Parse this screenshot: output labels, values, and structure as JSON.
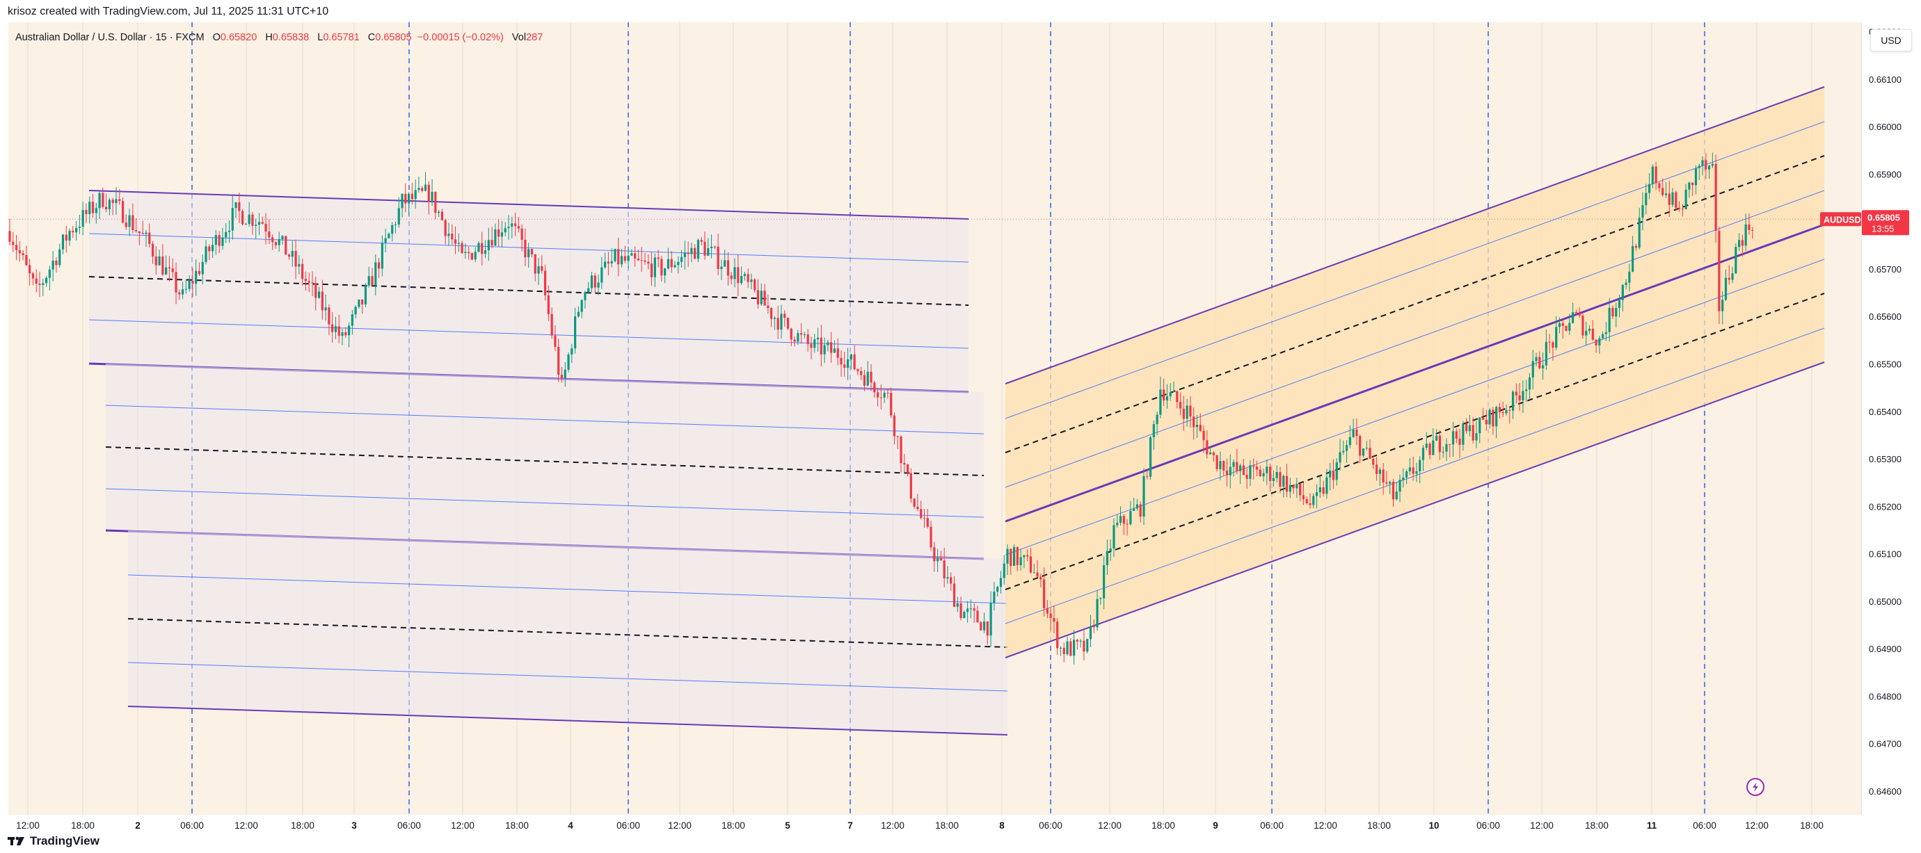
{
  "header": {
    "credit": "krisoz created with TradingView.com, Jul 11, 2025 11:31 UTC+10"
  },
  "legend": {
    "symbol": "Australian Dollar / U.S. Dollar · 15 · FXCM",
    "o_label": "O",
    "o_value": "0.65820",
    "h_label": "H",
    "h_value": "0.65838",
    "l_label": "L",
    "l_value": "0.65781",
    "c_label": "C",
    "c_value": "0.65805",
    "change": "−0.00015 (−0.02%)",
    "vol_label": "Vol",
    "vol_value": "287"
  },
  "price_scale": {
    "currency": "USD",
    "ticks": [
      "0.66200",
      "0.66100",
      "0.66000",
      "0.65900",
      "0.65700",
      "0.65600",
      "0.65500",
      "0.65400",
      "0.65300",
      "0.65200",
      "0.65100",
      "0.65000",
      "0.64900",
      "0.64800",
      "0.64700",
      "0.64600"
    ],
    "symbol_badge": "AUDUSD",
    "last_price": "0.65805",
    "countdown": "13:55"
  },
  "time_scale": {
    "labels": [
      "12:00",
      "18:00",
      "2",
      "06:00",
      "12:00",
      "18:00",
      "3",
      "06:00",
      "12:00",
      "18:00",
      "4",
      "06:00",
      "12:00",
      "18:00",
      "5",
      "7",
      "12:00",
      "18:00",
      "8",
      "06:00",
      "12:00",
      "18:00",
      "9",
      "06:00",
      "12:00",
      "18:00",
      "10",
      "06:00",
      "12:00",
      "18:00",
      "11",
      "06:00",
      "12:00",
      "18:00"
    ]
  },
  "footer": {
    "brand": "TradingView"
  },
  "colors": {
    "background": "#fbf1e4",
    "up_candle": "#089981",
    "down_candle": "#f23645",
    "channel_line": "#673ab7",
    "channel_inner": "#2962ff",
    "right_channel_fill": "#ffdfb0",
    "left_channel_fill": "#ede6ec"
  },
  "chart_data": {
    "type": "candlestick",
    "symbol": "AUDUSD",
    "interval": "15",
    "ylim": [
      0.6455,
      0.6622
    ],
    "x_range_bars": 555,
    "last_price": 0.65805,
    "anchor_path": [
      [
        0,
        0.6578
      ],
      [
        8,
        0.6565
      ],
      [
        18,
        0.6578
      ],
      [
        28,
        0.6585
      ],
      [
        34,
        0.6582
      ],
      [
        42,
        0.6575
      ],
      [
        52,
        0.6564
      ],
      [
        60,
        0.6574
      ],
      [
        68,
        0.6582
      ],
      [
        76,
        0.658
      ],
      [
        84,
        0.6573
      ],
      [
        94,
        0.6562
      ],
      [
        100,
        0.6555
      ],
      [
        106,
        0.6563
      ],
      [
        118,
        0.6584
      ],
      [
        126,
        0.6586
      ],
      [
        136,
        0.6572
      ],
      [
        150,
        0.658
      ],
      [
        160,
        0.6568
      ],
      [
        166,
        0.6545
      ],
      [
        172,
        0.6565
      ],
      [
        182,
        0.6572
      ],
      [
        196,
        0.657
      ],
      [
        208,
        0.6575
      ],
      [
        220,
        0.6568
      ],
      [
        230,
        0.656
      ],
      [
        240,
        0.6554
      ],
      [
        250,
        0.6552
      ],
      [
        258,
        0.6547
      ],
      [
        264,
        0.6543
      ],
      [
        270,
        0.6525
      ],
      [
        278,
        0.651
      ],
      [
        286,
        0.6498
      ],
      [
        294,
        0.6495
      ],
      [
        300,
        0.651
      ],
      [
        308,
        0.6507
      ],
      [
        316,
        0.649
      ],
      [
        324,
        0.649
      ],
      [
        332,
        0.6515
      ],
      [
        340,
        0.652
      ],
      [
        346,
        0.6545
      ],
      [
        354,
        0.654
      ],
      [
        362,
        0.653
      ],
      [
        370,
        0.6527
      ],
      [
        380,
        0.6527
      ],
      [
        392,
        0.652
      ],
      [
        404,
        0.6535
      ],
      [
        416,
        0.6522
      ],
      [
        428,
        0.6533
      ],
      [
        440,
        0.6536
      ],
      [
        452,
        0.6542
      ],
      [
        462,
        0.6553
      ],
      [
        470,
        0.656
      ],
      [
        478,
        0.6555
      ],
      [
        486,
        0.6568
      ],
      [
        494,
        0.659
      ],
      [
        502,
        0.6582
      ],
      [
        508,
        0.6592
      ],
      [
        512,
        0.659
      ],
      [
        514,
        0.6562
      ],
      [
        520,
        0.6576
      ],
      [
        524,
        0.658
      ]
    ]
  }
}
